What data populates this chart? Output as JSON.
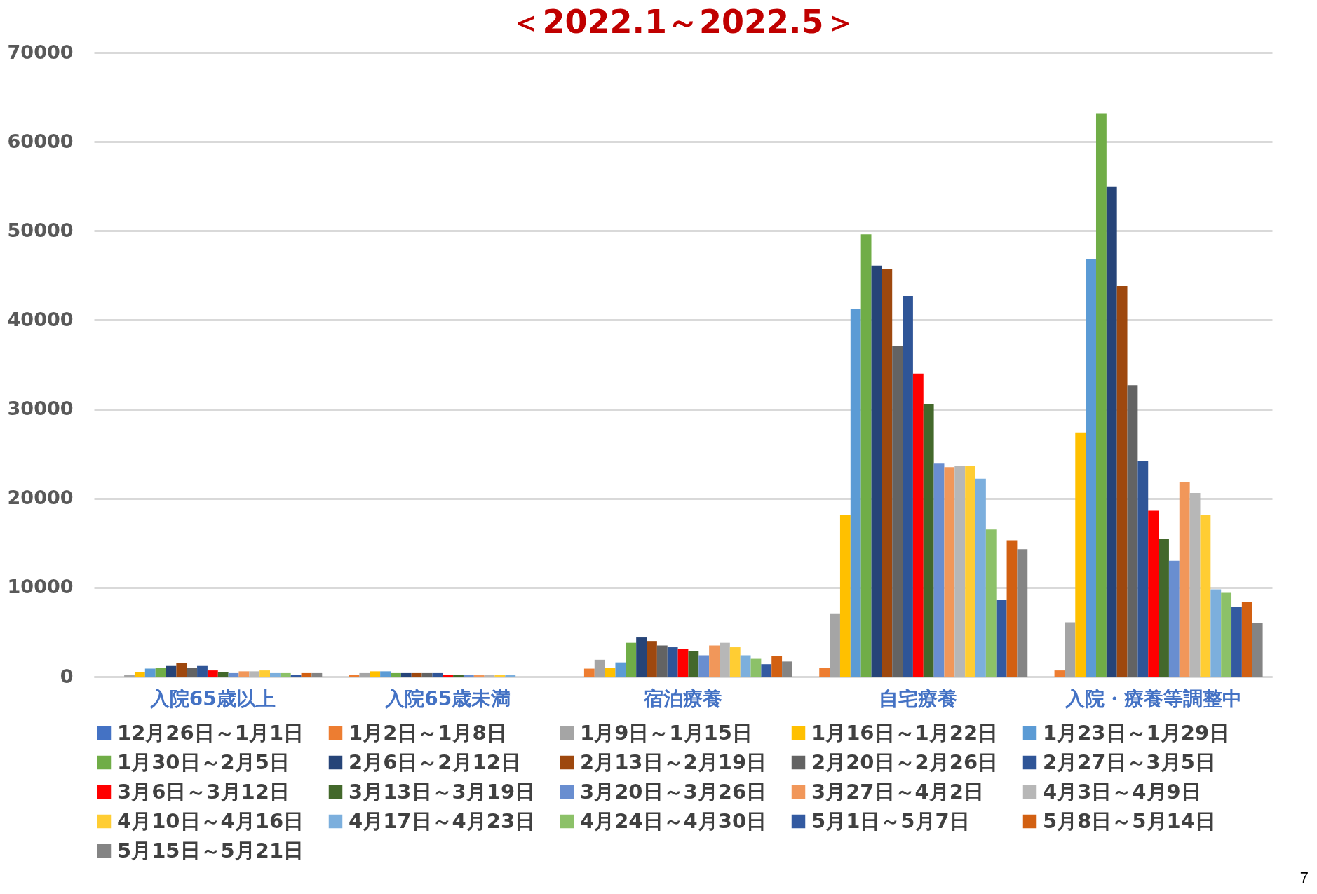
{
  "chart_data": {
    "type": "bar",
    "title": "＜2022.1～2022.5＞",
    "categories": [
      "入院65歳以上",
      "入院65歳未満",
      "宿泊療養",
      "自宅療養",
      "入院・療養等調整中"
    ],
    "ylim": [
      0,
      70000
    ],
    "yticks": [
      0,
      10000,
      20000,
      30000,
      40000,
      50000,
      60000,
      70000
    ],
    "grid": "y",
    "legend": "bottom",
    "annotations": [
      "7"
    ],
    "series": [
      {
        "name": "12月26日～1月1日",
        "color": "#4472c4",
        "values": [
          0,
          0,
          0,
          0,
          0
        ]
      },
      {
        "name": "1月2日～1月8日",
        "color": "#ed7d31",
        "values": [
          0,
          200,
          900,
          1000,
          700
        ]
      },
      {
        "name": "1月9日～1月15日",
        "color": "#a5a5a5",
        "values": [
          200,
          400,
          1900,
          7100,
          6100
        ]
      },
      {
        "name": "1月16日～1月22日",
        "color": "#ffc000",
        "values": [
          500,
          600,
          1000,
          18100,
          27400
        ]
      },
      {
        "name": "1月23日～1月29日",
        "color": "#5b9bd5",
        "values": [
          900,
          600,
          1600,
          41300,
          46800
        ]
      },
      {
        "name": "1月30日～2月5日",
        "color": "#70ad47",
        "values": [
          1000,
          400,
          3800,
          49600,
          63200
        ]
      },
      {
        "name": "2月6日～2月12日",
        "color": "#264478",
        "values": [
          1200,
          400,
          4400,
          46100,
          55000
        ]
      },
      {
        "name": "2月13日～2月19日",
        "color": "#9e480e",
        "values": [
          1500,
          400,
          4000,
          45700,
          43800
        ]
      },
      {
        "name": "2月20日～2月26日",
        "color": "#636363",
        "values": [
          1000,
          400,
          3500,
          37100,
          32700
        ]
      },
      {
        "name": "2月27日～3月5日",
        "color": "#2f5597",
        "values": [
          1200,
          400,
          3300,
          42700,
          24200
        ]
      },
      {
        "name": "3月6日～3月12日",
        "color": "#ff0000",
        "values": [
          700,
          200,
          3100,
          34000,
          18600
        ]
      },
      {
        "name": "3月13日～3月19日",
        "color": "#43682b",
        "values": [
          500,
          200,
          2900,
          30600,
          15500
        ]
      },
      {
        "name": "3月20日～3月26日",
        "color": "#698ed0",
        "values": [
          400,
          200,
          2400,
          23900,
          13000
        ]
      },
      {
        "name": "3月27日～4月2日",
        "color": "#f1975a",
        "values": [
          600,
          200,
          3500,
          23500,
          21800
        ]
      },
      {
        "name": "4月3日～4月9日",
        "color": "#b7b7b7",
        "values": [
          600,
          200,
          3800,
          23600,
          20600
        ]
      },
      {
        "name": "4月10日～4月16日",
        "color": "#ffcd33",
        "values": [
          700,
          200,
          3300,
          23600,
          18100
        ]
      },
      {
        "name": "4月17日～4月23日",
        "color": "#7cafdd",
        "values": [
          400,
          200,
          2400,
          22200,
          9800
        ]
      },
      {
        "name": "4月24日～4月30日",
        "color": "#8cc168",
        "values": [
          400,
          0,
          2000,
          16500,
          9400
        ]
      },
      {
        "name": "5月1日～5月7日",
        "color": "#335aa1",
        "values": [
          200,
          0,
          1400,
          8600,
          7800
        ]
      },
      {
        "name": "5月8日～5月14日",
        "color": "#d26012",
        "values": [
          400,
          0,
          2300,
          15300,
          8400
        ]
      },
      {
        "name": "5月15日～5月21日",
        "color": "#848484",
        "values": [
          400,
          0,
          1700,
          14300,
          6000
        ]
      }
    ]
  }
}
